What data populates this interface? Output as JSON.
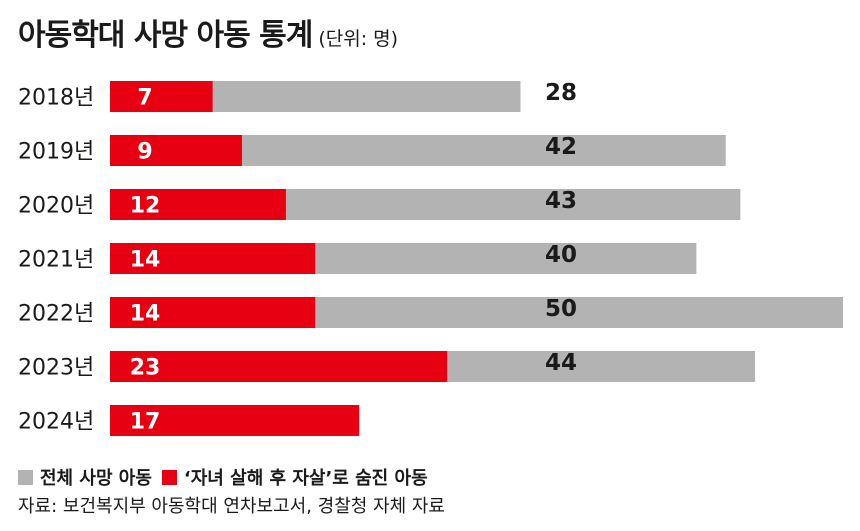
{
  "header": {
    "title": "아동학대 사망 아동 통계",
    "unit": "(단위: 명)"
  },
  "legend": {
    "items": [
      {
        "label": "전체 사망 아동",
        "color": "#b3b3b3"
      },
      {
        "label": "‘자녀 살해 후 자살’로 숨진 아동",
        "color": "#e60012"
      }
    ]
  },
  "source": "자료: 보건복지부 아동학대 연차보고서, 경찰청 자체 자료",
  "chart_data": {
    "type": "bar",
    "orientation": "horizontal",
    "stacking": "overlay",
    "categories": [
      "2018년",
      "2019년",
      "2020년",
      "2021년",
      "2022년",
      "2023년",
      "2024년"
    ],
    "series": [
      {
        "name": "전체 사망 아동",
        "color": "#b3b3b3",
        "values": [
          28,
          42,
          43,
          40,
          50,
          44,
          null
        ]
      },
      {
        "name": "‘자녀 살해 후 자살’로 숨진 아동",
        "color": "#e60012",
        "values": [
          7,
          9,
          12,
          14,
          14,
          23,
          17
        ]
      }
    ],
    "xlim": [
      0,
      50
    ],
    "grid": false
  }
}
